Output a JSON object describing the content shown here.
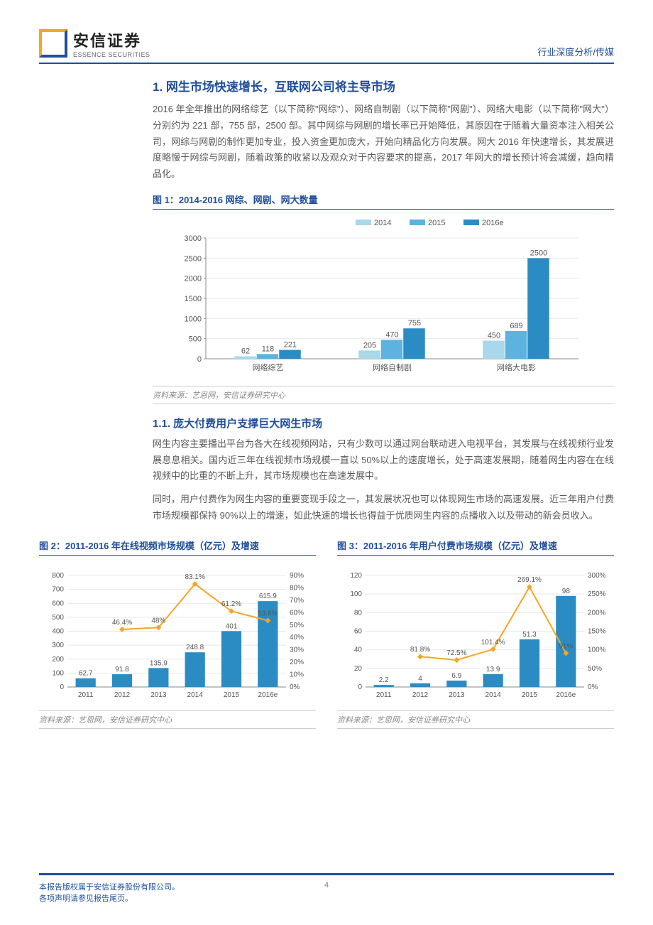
{
  "header": {
    "logo_cn": "安信证券",
    "logo_en": "ESSENCE SECURITIES",
    "right_text": "行业深度分析/传媒"
  },
  "section1": {
    "title": "1. 网生市场快速增长，互联网公司将主导市场",
    "para1": "2016 年全年推出的网络综艺（以下简称\"网综\"）、网络自制剧（以下简称\"网剧\"）、网络大电影（以下简称\"网大\"）分别约为 221 部，755 部，2500 部。其中网综与网剧的增长率已开始降低，其原因在于随着大量资本注入相关公司，网综与网剧的制作更加专业，投入资金更加庞大，开始向精品化方向发展。网大 2016 年快速增长，其发展进度略慢于网综与网剧，随着政策的收紧以及观众对于内容要求的提高，2017 年网大的增长预计将会减缓，趋向精品化。"
  },
  "chart1": {
    "title": "图 1：2014-2016 网综、网剧、网大数量",
    "type": "bar",
    "legend": [
      "2014",
      "2015",
      "2016e"
    ],
    "legend_colors": [
      "#a8d8ea",
      "#5cb3e0",
      "#2b8cc4"
    ],
    "categories": [
      "网络综艺",
      "网络自制剧",
      "网络大电影"
    ],
    "series": [
      [
        62,
        118,
        221
      ],
      [
        205,
        470,
        755
      ],
      [
        450,
        689,
        2500
      ]
    ],
    "ylim": [
      0,
      3000
    ],
    "ytick_step": 500,
    "axis_color": "#888888",
    "grid_color": "#e8e8e8",
    "label_fontsize": 11,
    "value_fontsize": 11,
    "source": "资料来源：艺恩网，安信证券研究中心"
  },
  "section11": {
    "title": "1.1. 庞大付费用户支撑巨大网生市场",
    "para1": "网生内容主要播出平台为各大在线视频网站，只有少数可以通过网台联动进入电视平台，其发展与在线视频行业发展息息相关。国内近三年在线视频市场规模一直以 50%以上的速度增长，处于高速发展期，随着网生内容在在线视频中的比重的不断上升，其市场规模也在高速发展中。",
    "para2": "同时，用户付费作为网生内容的重要变现手段之一，其发展状况也可以体现网生市场的高速发展。近三年用户付费市场规模都保持 90%以上的增速，如此快速的增长也得益于优质网生内容的点播收入以及带动的新会员收入。"
  },
  "chart2": {
    "title": "图 2：2011-2016 年在线视频市场规模（亿元）及增速",
    "type": "bar-line",
    "categories": [
      "2011",
      "2012",
      "2013",
      "2014",
      "2015",
      "2016e"
    ],
    "bar_values": [
      62.7,
      91.8,
      135.9,
      248.8,
      401.0,
      615.9
    ],
    "line_values": [
      null,
      46.4,
      48.0,
      83.1,
      61.2,
      53.6
    ],
    "bar_color": "#2b8cc4",
    "line_color": "#f5a623",
    "ylim_left": [
      0,
      800
    ],
    "ytick_left": 100,
    "ylim_right": [
      0,
      90
    ],
    "ytick_right": 10,
    "right_suffix": "%",
    "axis_color": "#888888",
    "grid_color": "#e8e8e8",
    "label_fontsize": 10,
    "source": "资料来源：艺恩网，安信证券研究中心"
  },
  "chart3": {
    "title": "图 3：2011-2016 年用户付费市场规模（亿元）及增速",
    "type": "bar-line",
    "categories": [
      "2011",
      "2012",
      "2013",
      "2014",
      "2015",
      "2016e"
    ],
    "bar_values": [
      2.2,
      4.0,
      6.9,
      13.9,
      51.3,
      98.0
    ],
    "line_values": [
      null,
      81.8,
      72.5,
      101.4,
      269.1,
      91.0
    ],
    "bar_color": "#2b8cc4",
    "line_color": "#f5a623",
    "ylim_left": [
      0,
      120
    ],
    "ytick_left": 20,
    "ylim_right": [
      0,
      300
    ],
    "ytick_right": 50,
    "right_suffix": "%",
    "axis_color": "#888888",
    "grid_color": "#e8e8e8",
    "label_fontsize": 10,
    "source": "资料来源：艺恩网，安信证券研究中心"
  },
  "footer": {
    "left1": "本报告版权属于安信证券股份有限公司。",
    "left2": "各项声明请参见报告尾页。",
    "page": "4"
  }
}
